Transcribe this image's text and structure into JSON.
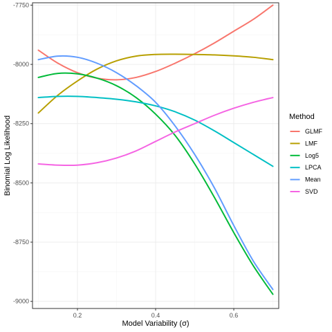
{
  "chart_data": {
    "type": "line",
    "xlabel": "Model Variability (σ)",
    "ylabel": "Binomial Log Likelihood",
    "xlim": [
      0.085,
      0.715
    ],
    "ylim": [
      -9030,
      -7740
    ],
    "x_ticks": [
      0.2,
      0.4,
      0.6
    ],
    "x_tick_labels": [
      "0.2",
      "0.4",
      "0.6"
    ],
    "y_ticks": [
      -9000,
      -8750,
      -8500,
      -8250,
      -8000,
      -7750
    ],
    "y_tick_labels": [
      "-9000",
      "-8750",
      "-8500",
      "-8250",
      "-8000",
      "-7750"
    ],
    "grid": true,
    "legend": {
      "title": "Method",
      "position": "right"
    },
    "series": [
      {
        "name": "GLMF",
        "color": "#F8766D",
        "x": [
          0.1,
          0.15,
          0.2,
          0.25,
          0.3,
          0.35,
          0.4,
          0.45,
          0.5,
          0.55,
          0.6,
          0.65,
          0.7
        ],
        "y": [
          -7940,
          -7995,
          -8035,
          -8058,
          -8065,
          -8055,
          -8030,
          -7995,
          -7955,
          -7910,
          -7860,
          -7810,
          -7750
        ]
      },
      {
        "name": "LMF",
        "color": "#B79F00",
        "x": [
          0.1,
          0.15,
          0.2,
          0.25,
          0.3,
          0.35,
          0.4,
          0.45,
          0.5,
          0.55,
          0.6,
          0.65,
          0.7
        ],
        "y": [
          -8205,
          -8130,
          -8070,
          -8020,
          -7985,
          -7965,
          -7958,
          -7957,
          -7958,
          -7960,
          -7964,
          -7970,
          -7980
        ]
      },
      {
        "name": "Log5",
        "color": "#00BA38",
        "x": [
          0.1,
          0.15,
          0.2,
          0.25,
          0.3,
          0.35,
          0.4,
          0.45,
          0.5,
          0.55,
          0.6,
          0.65,
          0.7
        ],
        "y": [
          -8055,
          -8038,
          -8040,
          -8058,
          -8090,
          -8140,
          -8210,
          -8300,
          -8420,
          -8560,
          -8710,
          -8850,
          -8970
        ]
      },
      {
        "name": "LPCA",
        "color": "#00BFC4",
        "x": [
          0.1,
          0.15,
          0.2,
          0.25,
          0.3,
          0.35,
          0.4,
          0.45,
          0.5,
          0.55,
          0.6,
          0.65,
          0.7
        ],
        "y": [
          -8140,
          -8135,
          -8135,
          -8140,
          -8147,
          -8158,
          -8175,
          -8200,
          -8235,
          -8280,
          -8330,
          -8380,
          -8430
        ]
      },
      {
        "name": "Mean",
        "color": "#619CFF",
        "x": [
          0.1,
          0.15,
          0.2,
          0.25,
          0.3,
          0.35,
          0.4,
          0.45,
          0.5,
          0.55,
          0.6,
          0.65,
          0.7
        ],
        "y": [
          -7980,
          -7965,
          -7970,
          -7995,
          -8035,
          -8090,
          -8160,
          -8260,
          -8380,
          -8520,
          -8680,
          -8830,
          -8950
        ]
      },
      {
        "name": "SVD",
        "color": "#F564E3",
        "x": [
          0.1,
          0.15,
          0.2,
          0.25,
          0.3,
          0.35,
          0.4,
          0.45,
          0.5,
          0.55,
          0.6,
          0.65,
          0.7
        ],
        "y": [
          -8420,
          -8425,
          -8425,
          -8415,
          -8395,
          -8365,
          -8325,
          -8285,
          -8250,
          -8215,
          -8185,
          -8160,
          -8140
        ]
      }
    ]
  }
}
